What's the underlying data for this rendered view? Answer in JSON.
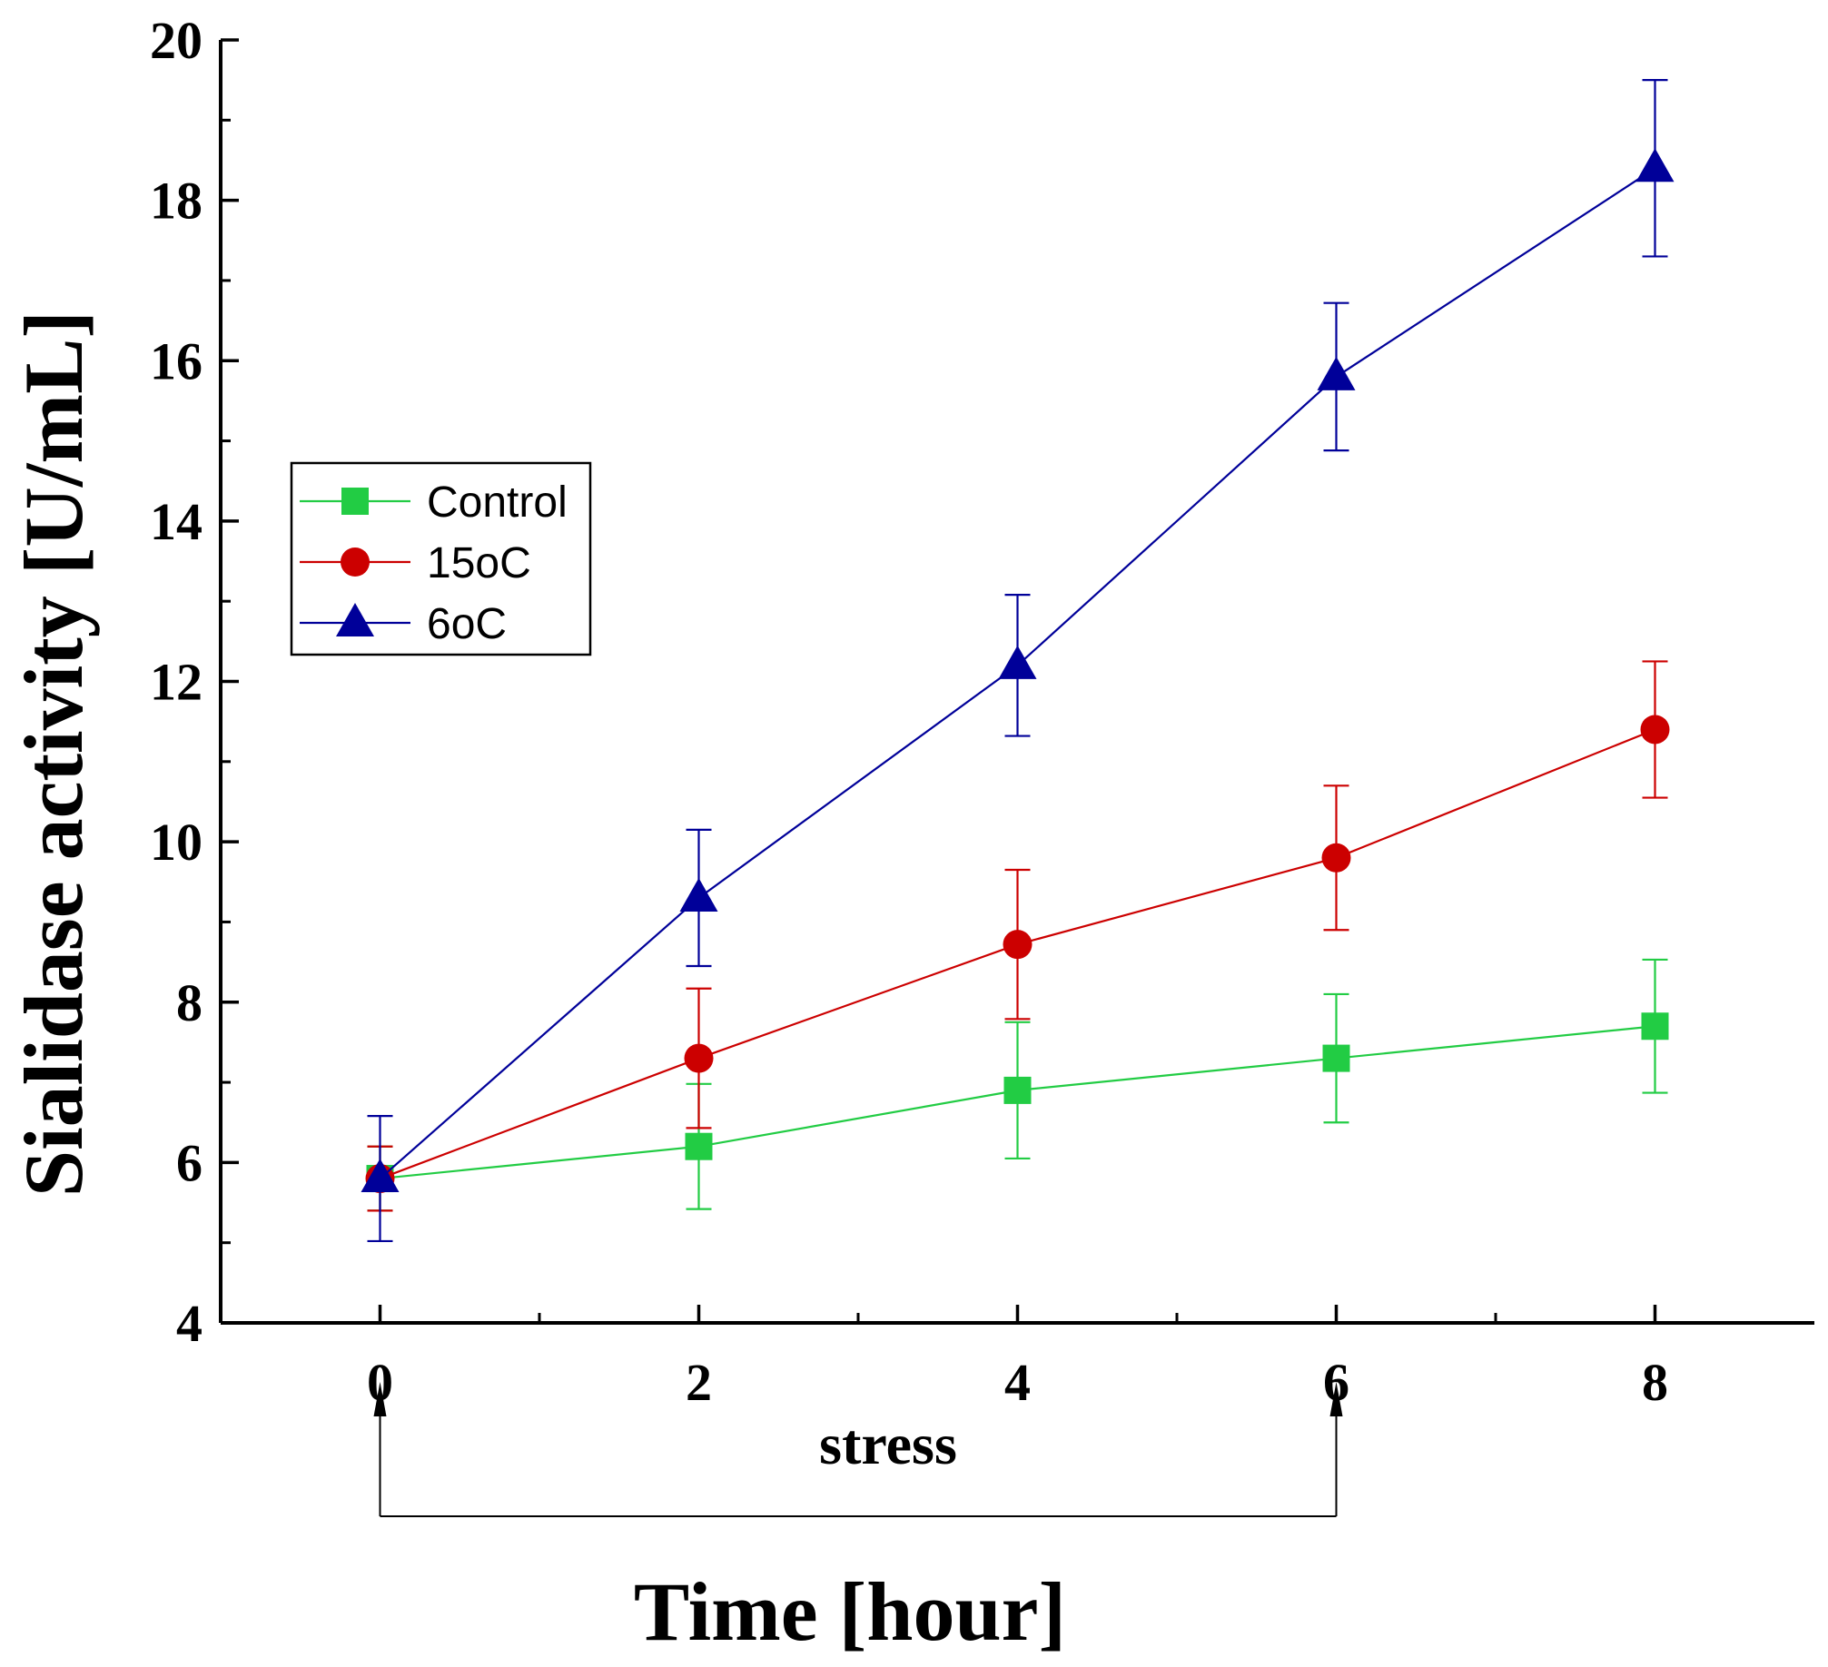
{
  "chart_data": {
    "type": "line",
    "xlabel": "Time [hour]",
    "ylabel": "Sialidase activity [U/mL]",
    "xlim": [
      -1,
      9
    ],
    "ylim": [
      4,
      20
    ],
    "x_ticks": [
      0,
      2,
      4,
      6,
      8
    ],
    "x_tick_labels": [
      "0",
      "2",
      "4",
      "6",
      "8"
    ],
    "x_minor_ticks": [
      1,
      3,
      5,
      7
    ],
    "y_ticks": [
      4,
      6,
      8,
      10,
      12,
      14,
      16,
      18,
      20
    ],
    "y_tick_labels": [
      "4",
      "6",
      "8",
      "10",
      "12",
      "14",
      "16",
      "18",
      "20"
    ],
    "y_minor_ticks": [
      5,
      7,
      9,
      11,
      13,
      15,
      17,
      19
    ],
    "x": [
      0,
      2,
      4,
      6,
      8
    ],
    "grid": false,
    "legend_position": "center-left",
    "series": [
      {
        "name": "Control",
        "color": "#22cc44",
        "marker": "square",
        "values": [
          5.8,
          6.2,
          6.9,
          7.3,
          7.7
        ],
        "errors": [
          0.4,
          0.78,
          0.85,
          0.8,
          0.83
        ]
      },
      {
        "name": "15oC",
        "color": "#cc0000",
        "marker": "circle",
        "values": [
          5.8,
          7.3,
          8.72,
          9.8,
          11.4
        ],
        "errors": [
          0.4,
          0.87,
          0.93,
          0.9,
          0.85
        ]
      },
      {
        "name": "6oC",
        "color": "#000099",
        "marker": "triangle",
        "values": [
          5.8,
          9.3,
          12.2,
          15.8,
          18.4
        ],
        "errors": [
          0.78,
          0.85,
          0.88,
          0.92,
          1.1
        ]
      }
    ],
    "annotation": {
      "label": "stress",
      "x_start": 0,
      "x_end": 6
    }
  }
}
